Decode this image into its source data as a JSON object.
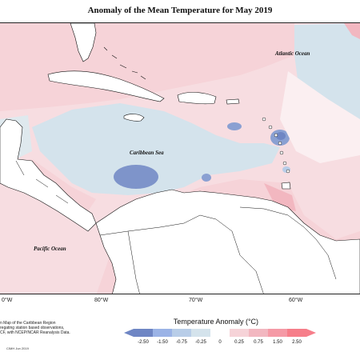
{
  "title": "Anomaly of the Mean Temperature for May 2019",
  "ocean_labels": {
    "atlantic": "Atlantic Ocean",
    "caribbean": "Caribbean Sea",
    "pacific": "Pacific Ocean"
  },
  "longitude_labels": [
    "0°W",
    "80°W",
    "70°W",
    "60°W"
  ],
  "legend": {
    "title": "Temperature Anomaly (°C)",
    "ticks": [
      "-2.50",
      "-1.50",
      "-0.75",
      "-0.25",
      "0",
      "0.25",
      "0.75",
      "1.50",
      "2.50"
    ],
    "colors": [
      "#6f86c4",
      "#9bb3e6",
      "#b8cde8",
      "#d4e3ec",
      "#ffffff",
      "#f6d3d8",
      "#f2b7c0",
      "#f59aa6",
      "#f67e8a"
    ]
  },
  "notes": [
    "n Map of the Caribbean Region",
    "regating station based observations,",
    "CF, with NCEP/NCAR Reanalysis Data."
  ],
  "credit": "CIMH Jun 2019"
}
